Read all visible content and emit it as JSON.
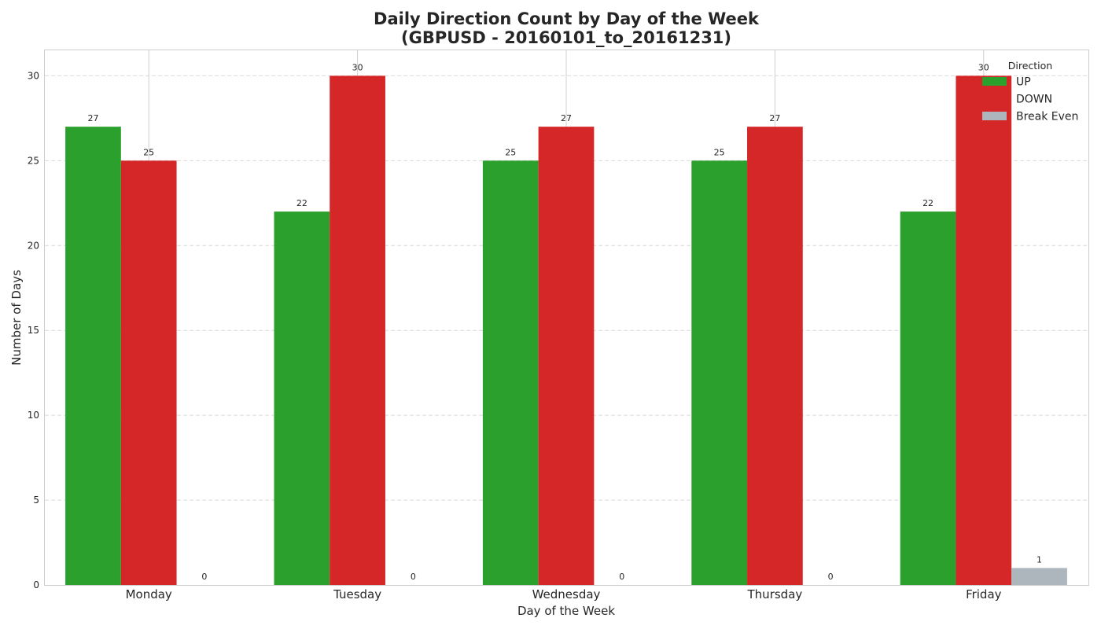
{
  "chart_data": {
    "type": "bar",
    "title_line1": "Daily Direction Count by Day of the Week",
    "title_line2": "(GBPUSD - 20160101_to_20161231)",
    "xlabel": "Day of the Week",
    "ylabel": "Number of Days",
    "categories": [
      "Monday",
      "Tuesday",
      "Wednesday",
      "Thursday",
      "Friday"
    ],
    "yticks": [
      0,
      5,
      10,
      15,
      20,
      25,
      30
    ],
    "ylim": [
      0,
      31.5
    ],
    "grid": true,
    "legend": {
      "title": "Direction",
      "placement": "top-right"
    },
    "series": [
      {
        "name": "UP",
        "color": "#2ca02c",
        "values": [
          27,
          22,
          25,
          25,
          22
        ]
      },
      {
        "name": "DOWN",
        "color": "#d62728",
        "values": [
          25,
          30,
          27,
          27,
          30
        ]
      },
      {
        "name": "Break Even",
        "color": "#adb5bd",
        "values": [
          0,
          0,
          0,
          0,
          1
        ]
      }
    ]
  }
}
